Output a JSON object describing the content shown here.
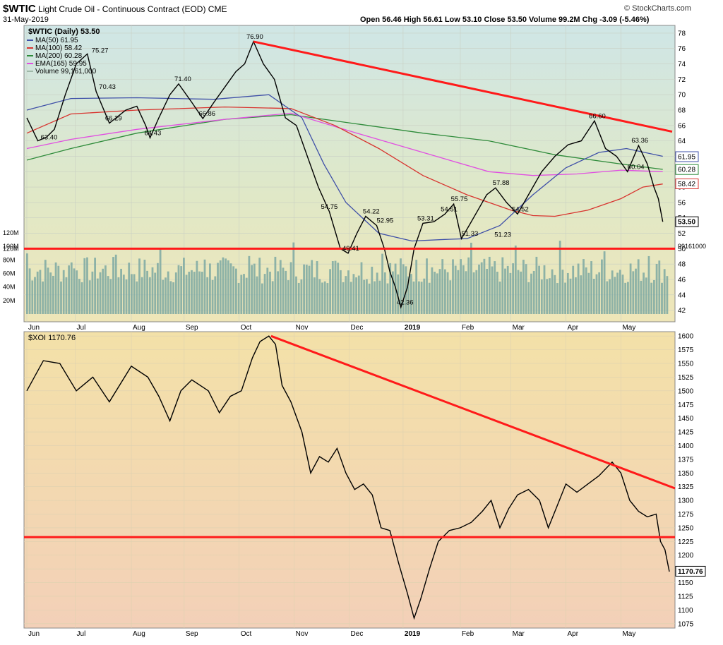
{
  "header": {
    "symbol": "$WTIC",
    "name": "Light Crude Oil - Continuous Contract (EOD)",
    "exchange": "CME",
    "date": "31-May-2019",
    "ohlc": "Open 56.46  High 56.61  Low 53.10  Close 53.50  Volume 99.2M  Chg -3.09 (-5.46%)",
    "brand": "© StockCharts.com"
  },
  "colors": {
    "ma50": "#3f50a8",
    "ma100": "#d8342f",
    "ma200": "#2e8b3a",
    "ema165": "#e14fe1",
    "volume": "#7da8a2",
    "trend": "#ff1a1a",
    "candle": "#000000"
  },
  "chart_data": [
    {
      "type": "line",
      "panel": "top",
      "title": "$WTIC (Daily) 53.50",
      "legend": [
        {
          "name": "MA(50) 61.95",
          "color": "#3f50a8"
        },
        {
          "name": "MA(100) 58.42",
          "color": "#d8342f"
        },
        {
          "name": "MA(200) 60.28",
          "color": "#2e8b3a"
        },
        {
          "name": "EMA(165) 59.95",
          "color": "#e14fe1"
        },
        {
          "name": "Volume 99,161,000",
          "color": "#9fb8a8"
        }
      ],
      "x_ticks": [
        "Jun",
        "Jul",
        "Aug",
        "Sep",
        "Oct",
        "Nov",
        "Dec",
        "2019",
        "Feb",
        "Mar",
        "Apr",
        "May"
      ],
      "y_ticks": [
        42,
        44,
        46,
        48,
        50,
        52,
        54,
        56,
        58,
        60,
        62,
        64,
        66,
        68,
        70,
        72,
        74,
        76,
        78
      ],
      "ylim": [
        40.5,
        79
      ],
      "volume_ticks": [
        "20M",
        "40M",
        "60M",
        "80M",
        "100M",
        "120M"
      ],
      "annotations": [
        "75.27",
        "70.43",
        "66.29",
        "63.40",
        "64.43",
        "71.40",
        "66.86",
        "76.90",
        "54.75",
        "54.22",
        "52.95",
        "49.41",
        "42.36",
        "53.31",
        "54.51",
        "55.75",
        "51.33",
        "51.23",
        "57.88",
        "54.52",
        "66.60",
        "63.36",
        "60.04"
      ],
      "price_path": [
        [
          0,
          67
        ],
        [
          10,
          64
        ],
        [
          18,
          64.5
        ],
        [
          25,
          65.5
        ],
        [
          35,
          70
        ],
        [
          45,
          74
        ],
        [
          55,
          75.3
        ],
        [
          63,
          70.4
        ],
        [
          75,
          66.3
        ],
        [
          90,
          68
        ],
        [
          100,
          68.5
        ],
        [
          108,
          66
        ],
        [
          112,
          64.4
        ],
        [
          120,
          67
        ],
        [
          130,
          70
        ],
        [
          138,
          71.4
        ],
        [
          150,
          69
        ],
        [
          160,
          66.9
        ],
        [
          170,
          69
        ],
        [
          180,
          71
        ],
        [
          190,
          73
        ],
        [
          198,
          74
        ],
        [
          206,
          76.9
        ],
        [
          215,
          74
        ],
        [
          225,
          72
        ],
        [
          235,
          67
        ],
        [
          245,
          66
        ],
        [
          255,
          62
        ],
        [
          265,
          58
        ],
        [
          275,
          54.8
        ],
        [
          285,
          50
        ],
        [
          292,
          49.4
        ],
        [
          300,
          52
        ],
        [
          308,
          54.2
        ],
        [
          318,
          53
        ],
        [
          325,
          50
        ],
        [
          330,
          47
        ],
        [
          335,
          45
        ],
        [
          340,
          42.4
        ],
        [
          346,
          45
        ],
        [
          352,
          50
        ],
        [
          360,
          53.3
        ],
        [
          370,
          53.5
        ],
        [
          380,
          54.5
        ],
        [
          388,
          55.8
        ],
        [
          395,
          51.3
        ],
        [
          402,
          53
        ],
        [
          410,
          55
        ],
        [
          418,
          57
        ],
        [
          426,
          57.9
        ],
        [
          436,
          56
        ],
        [
          446,
          54.5
        ],
        [
          456,
          57
        ],
        [
          468,
          60
        ],
        [
          480,
          62
        ],
        [
          492,
          63.5
        ],
        [
          504,
          64
        ],
        [
          516,
          66.6
        ],
        [
          526,
          63
        ],
        [
          536,
          62
        ],
        [
          546,
          60
        ],
        [
          556,
          63.4
        ],
        [
          564,
          61
        ],
        [
          570,
          58
        ],
        [
          574,
          56.5
        ],
        [
          578,
          53.5
        ]
      ],
      "ma50_path": [
        [
          0,
          68
        ],
        [
          40,
          69.5
        ],
        [
          100,
          69.6
        ],
        [
          170,
          69.4
        ],
        [
          220,
          70
        ],
        [
          250,
          67
        ],
        [
          270,
          61
        ],
        [
          290,
          56
        ],
        [
          320,
          52
        ],
        [
          350,
          51
        ],
        [
          380,
          51.2
        ],
        [
          400,
          51.3
        ],
        [
          430,
          53
        ],
        [
          460,
          57
        ],
        [
          490,
          60.5
        ],
        [
          520,
          62.5
        ],
        [
          545,
          63
        ],
        [
          578,
          62
        ]
      ],
      "ma100_path": [
        [
          0,
          65
        ],
        [
          40,
          67.5
        ],
        [
          100,
          68
        ],
        [
          180,
          68.4
        ],
        [
          240,
          68.2
        ],
        [
          280,
          66
        ],
        [
          320,
          63
        ],
        [
          360,
          59.5
        ],
        [
          400,
          57
        ],
        [
          440,
          55
        ],
        [
          460,
          54.3
        ],
        [
          480,
          54.2
        ],
        [
          510,
          55
        ],
        [
          540,
          56.5
        ],
        [
          560,
          58
        ],
        [
          578,
          58.4
        ]
      ],
      "ma200_path": [
        [
          0,
          61.5
        ],
        [
          40,
          63
        ],
        [
          100,
          65
        ],
        [
          180,
          66.8
        ],
        [
          240,
          67.4
        ],
        [
          300,
          66.2
        ],
        [
          360,
          65
        ],
        [
          420,
          64
        ],
        [
          480,
          62.2
        ],
        [
          540,
          61
        ],
        [
          578,
          60.3
        ]
      ],
      "ema165_path": [
        [
          0,
          63
        ],
        [
          40,
          64.2
        ],
        [
          100,
          65.5
        ],
        [
          180,
          66.8
        ],
        [
          240,
          67.6
        ],
        [
          300,
          65
        ],
        [
          360,
          62.5
        ],
        [
          420,
          60
        ],
        [
          460,
          59.5
        ],
        [
          500,
          59.7
        ],
        [
          540,
          60.2
        ],
        [
          578,
          60
        ]
      ],
      "volume_ticks_values": [
        20,
        40,
        60,
        80,
        100,
        120
      ],
      "support_level": 50,
      "price_labels": [
        "61.95",
        "60.28",
        "58.42",
        "53.50"
      ],
      "volume_label": "99161000"
    },
    {
      "type": "line",
      "panel": "bottom",
      "title": "$XOI 1170.76",
      "x_ticks": [
        "Jun",
        "Jul",
        "Aug",
        "Sep",
        "Oct",
        "Nov",
        "Dec",
        "2019",
        "Feb",
        "Mar",
        "Apr",
        "May"
      ],
      "y_ticks": [
        1075,
        1100,
        1125,
        1150,
        1175,
        1200,
        1225,
        1250,
        1275,
        1300,
        1325,
        1350,
        1375,
        1400,
        1425,
        1450,
        1475,
        1500,
        1525,
        1550,
        1575,
        1600
      ],
      "ylim": [
        1067,
        1608
      ],
      "support_level": 1233,
      "last_label": "1170.76",
      "price_path": [
        [
          0,
          1500
        ],
        [
          15,
          1555
        ],
        [
          30,
          1550
        ],
        [
          45,
          1500
        ],
        [
          60,
          1525
        ],
        [
          75,
          1480
        ],
        [
          95,
          1545
        ],
        [
          110,
          1525
        ],
        [
          120,
          1490
        ],
        [
          130,
          1445
        ],
        [
          140,
          1500
        ],
        [
          150,
          1520
        ],
        [
          165,
          1500
        ],
        [
          175,
          1460
        ],
        [
          185,
          1490
        ],
        [
          195,
          1500
        ],
        [
          205,
          1560
        ],
        [
          212,
          1590
        ],
        [
          220,
          1600
        ],
        [
          226,
          1585
        ],
        [
          232,
          1510
        ],
        [
          240,
          1480
        ],
        [
          250,
          1425
        ],
        [
          258,
          1350
        ],
        [
          266,
          1380
        ],
        [
          274,
          1370
        ],
        [
          282,
          1395
        ],
        [
          290,
          1350
        ],
        [
          298,
          1320
        ],
        [
          306,
          1330
        ],
        [
          314,
          1310
        ],
        [
          322,
          1250
        ],
        [
          330,
          1245
        ],
        [
          338,
          1185
        ],
        [
          346,
          1130
        ],
        [
          352,
          1085
        ],
        [
          358,
          1120
        ],
        [
          366,
          1175
        ],
        [
          374,
          1225
        ],
        [
          384,
          1245
        ],
        [
          394,
          1250
        ],
        [
          404,
          1260
        ],
        [
          414,
          1280
        ],
        [
          422,
          1300
        ],
        [
          430,
          1250
        ],
        [
          438,
          1285
        ],
        [
          446,
          1310
        ],
        [
          456,
          1320
        ],
        [
          466,
          1300
        ],
        [
          474,
          1250
        ],
        [
          482,
          1290
        ],
        [
          490,
          1330
        ],
        [
          500,
          1315
        ],
        [
          510,
          1330
        ],
        [
          520,
          1345
        ],
        [
          532,
          1370
        ],
        [
          540,
          1350
        ],
        [
          548,
          1300
        ],
        [
          556,
          1280
        ],
        [
          564,
          1270
        ],
        [
          572,
          1275
        ],
        [
          576,
          1225
        ],
        [
          580,
          1210
        ],
        [
          584,
          1170
        ]
      ]
    }
  ]
}
